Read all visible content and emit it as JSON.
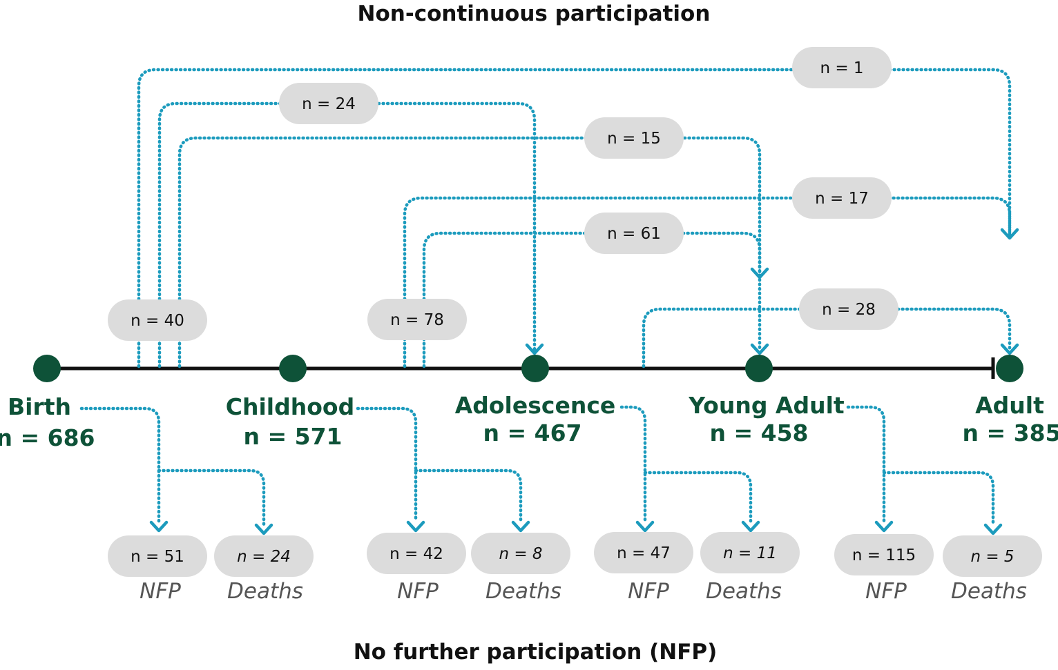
{
  "title_top": "Non-continuous participation",
  "title_bottom": "No further participation (NFP)",
  "colors": {
    "stage": "#0e5238",
    "flow": "#1c9bbd",
    "pill": "#dcdcdc",
    "timeline": "#111111"
  },
  "stages": [
    {
      "name": "Birth",
      "n": "n = 686"
    },
    {
      "name": "Childhood",
      "n": "n = 571"
    },
    {
      "name": "Adolescence",
      "n": "n = 467"
    },
    {
      "name": "Young Adult",
      "n": "n = 458"
    },
    {
      "name": "Adult",
      "n": "n = 385"
    }
  ],
  "skip_flows": {
    "birth_total": "n = 40",
    "birth_to_adult": "n = 1",
    "birth_to_adolescence": "n = 24",
    "birth_to_young_adult": "n = 15",
    "childhood_total": "n = 78",
    "childhood_to_adult": "n = 17",
    "childhood_to_young_adult": "n = 61",
    "adolescence_to_adult": "n = 28"
  },
  "outcomes": [
    {
      "stage": "Birth",
      "nfp": "n = 51",
      "deaths": "n = 24",
      "nfp_label": "NFP",
      "deaths_label": "Deaths"
    },
    {
      "stage": "Childhood",
      "nfp": "n = 42",
      "deaths": "n = 8",
      "nfp_label": "NFP",
      "deaths_label": "Deaths"
    },
    {
      "stage": "Adolescence",
      "nfp": "n = 47",
      "deaths": "n = 11",
      "nfp_label": "NFP",
      "deaths_label": "Deaths"
    },
    {
      "stage": "Young Adult",
      "nfp": "n = 115",
      "deaths": "n = 5",
      "nfp_label": "NFP",
      "deaths_label": "Deaths"
    }
  ]
}
